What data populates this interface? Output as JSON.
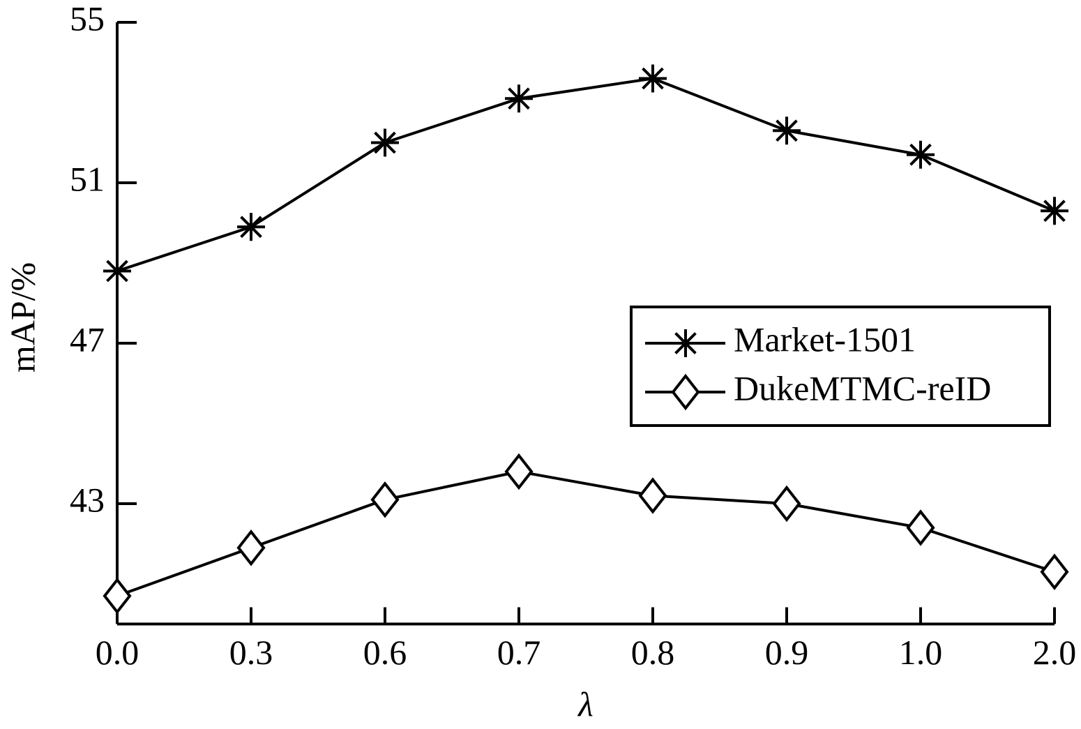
{
  "chart_data": {
    "type": "line",
    "x_label": "λ",
    "y_label": "mAP/%",
    "categories": [
      "0.0",
      "0.3",
      "0.6",
      "0.7",
      "0.8",
      "0.9",
      "1.0",
      "2.0"
    ],
    "series": [
      {
        "name": "Market-1501",
        "color": "#000000",
        "marker": "asterisk",
        "values": [
          48.8,
          49.9,
          52.0,
          53.1,
          53.6,
          52.3,
          51.7,
          50.3
        ]
      },
      {
        "name": "DukeMTMC-reID",
        "color": "#000000",
        "marker": "diamond",
        "values": [
          40.7,
          41.9,
          43.1,
          43.8,
          43.2,
          43.0,
          42.4,
          41.3
        ]
      }
    ],
    "ylim": [
      40,
      55
    ],
    "yticks": [
      43,
      47,
      51,
      55
    ],
    "grid": false
  }
}
